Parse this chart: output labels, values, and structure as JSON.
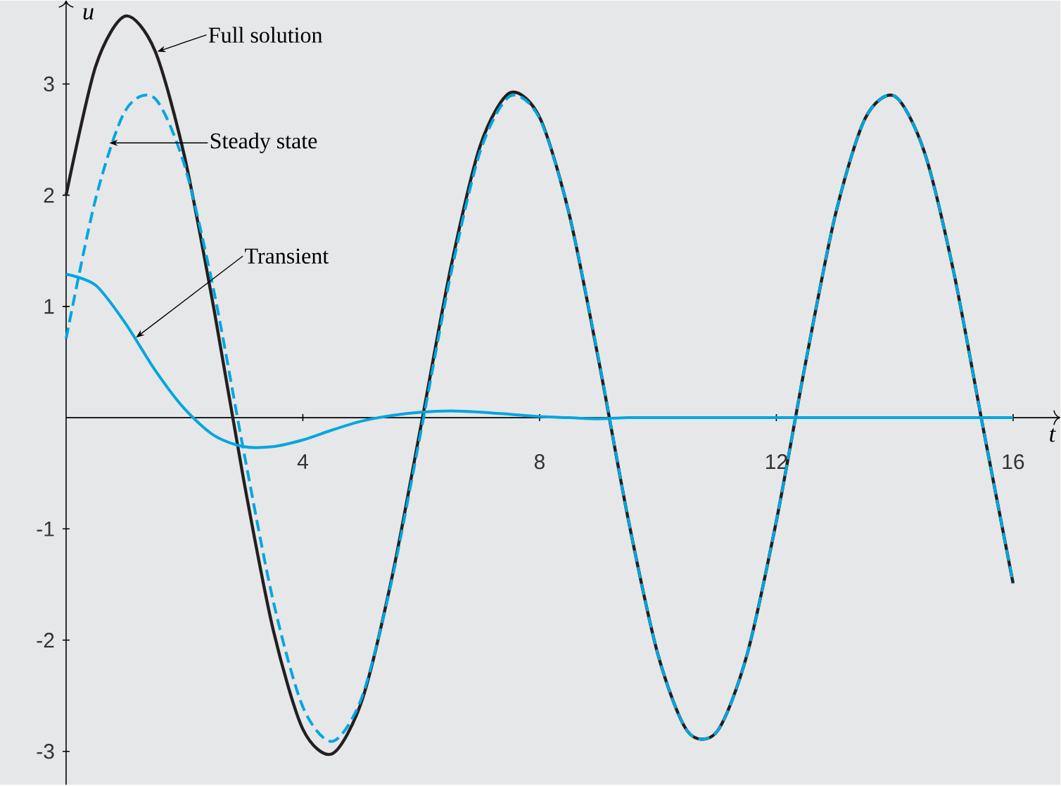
{
  "chart_data": {
    "type": "line",
    "xlabel": "t",
    "ylabel": "u",
    "x": [
      0,
      0.5,
      1,
      1.5,
      2,
      2.5,
      3,
      3.5,
      4,
      4.5,
      5,
      5.5,
      6,
      6.5,
      7,
      7.5,
      8,
      8.5,
      9,
      9.5,
      10,
      10.5,
      11,
      11.5,
      12,
      12.5,
      13,
      13.5,
      14,
      14.5,
      15,
      15.5,
      16
    ],
    "series": [
      {
        "color": "#231f20",
        "line_style": "solid",
        "values": [
          2.0,
          3.16,
          3.61,
          3.3,
          2.35,
          0.97,
          -0.56,
          -1.91,
          -2.8,
          -3.02,
          -2.54,
          -1.45,
          -0.06,
          1.35,
          2.45,
          2.92,
          2.7,
          1.83,
          0.51,
          -0.92,
          -2.13,
          -2.82,
          -2.82,
          -2.14,
          -0.93,
          0.51,
          1.83,
          2.69,
          2.89,
          2.39,
          1.3,
          -0.11,
          -1.49
        ]
      },
      {
        "color": "#00a6e0",
        "line_style": "dashed",
        "values": [
          0.71,
          1.97,
          2.76,
          2.87,
          2.27,
          1.13,
          -0.3,
          -1.65,
          -2.6,
          -2.91,
          -2.51,
          -1.47,
          -0.11,
          1.29,
          2.4,
          2.89,
          2.69,
          1.83,
          0.52,
          -0.92,
          -2.13,
          -2.82,
          -2.82,
          -2.14,
          -0.93,
          0.51,
          1.83,
          2.69,
          2.89,
          2.39,
          1.3,
          -0.11,
          -1.49
        ]
      },
      {
        "color": "#00a6e0",
        "line_style": "solid",
        "values": [
          1.29,
          1.19,
          0.85,
          0.43,
          0.08,
          -0.16,
          -0.26,
          -0.26,
          -0.2,
          -0.11,
          -0.03,
          0.02,
          0.05,
          0.06,
          0.05,
          0.03,
          0.01,
          0,
          -0.01,
          0,
          0,
          0,
          0,
          0,
          0,
          0,
          0,
          0,
          0,
          0,
          0,
          0,
          0
        ]
      }
    ],
    "xlim": [
      0,
      16.8
    ],
    "ylim": [
      -3.3,
      3.75
    ],
    "xticks": [
      4,
      8,
      12,
      16
    ],
    "yticks": [
      -3,
      -2,
      -1,
      1,
      2,
      3
    ],
    "marker": "none",
    "annotations": [
      {
        "text": "Full solution",
        "x": 1.54,
        "y": 3.29
      },
      {
        "text": "Steady state",
        "x": 0.73,
        "y": 2.47
      },
      {
        "text": "Transient",
        "x": 1.18,
        "y": 0.72
      }
    ]
  }
}
